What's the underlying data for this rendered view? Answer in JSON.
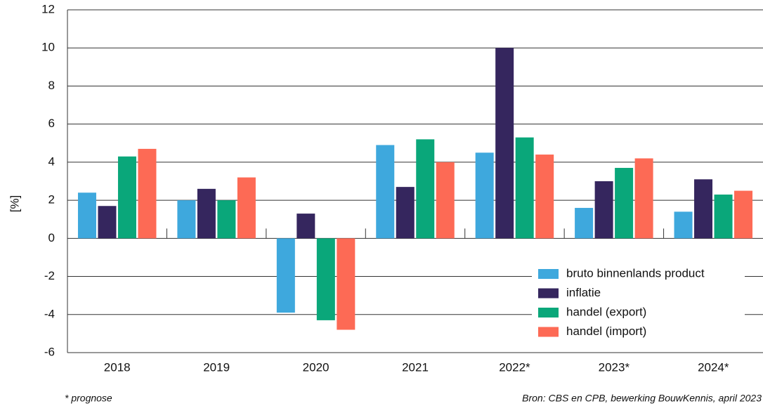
{
  "chart_data": {
    "type": "bar",
    "y_label": "[%]",
    "categories": [
      "2018",
      "2019",
      "2020",
      "2021",
      "2022*",
      "2023*",
      "2024*"
    ],
    "series": [
      {
        "name": "bruto binnenlands product",
        "color": "#3ea8dd",
        "values": [
          2.4,
          2.0,
          -3.9,
          4.9,
          4.5,
          1.6,
          1.4
        ]
      },
      {
        "name": "inflatie",
        "color": "#35265e",
        "values": [
          1.7,
          2.6,
          1.3,
          2.7,
          10.0,
          3.0,
          3.1
        ]
      },
      {
        "name": "handel (export)",
        "color": "#0aa77a",
        "values": [
          4.3,
          2.0,
          -4.3,
          5.2,
          5.3,
          3.7,
          2.3
        ]
      },
      {
        "name": "handel (import)",
        "color": "#fd6a55",
        "values": [
          4.7,
          3.2,
          -4.8,
          4.0,
          4.4,
          4.2,
          2.5
        ]
      }
    ],
    "ylim": [
      -6,
      12
    ],
    "yticks": [
      -6,
      -4,
      -2,
      0,
      2,
      4,
      6,
      8,
      10,
      12
    ],
    "grid": true,
    "legend": "lower right",
    "footnote": "* prognose",
    "source": "Bron: CBS en CPB, bewerking BouwKennis, april 2023"
  }
}
